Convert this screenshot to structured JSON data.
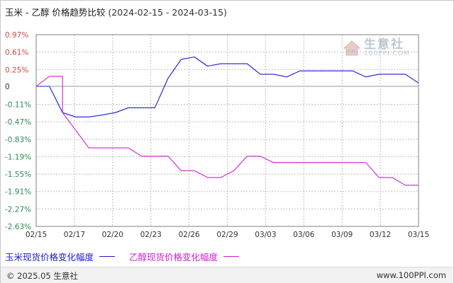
{
  "header": {
    "title": "玉米 - 乙醇 价格趋势比较",
    "date_range": "(2024-02-15 - 2024-03-15)"
  },
  "watermark": {
    "name": "生意社",
    "url": "100PPI.COM",
    "icon": "house-logo-icon"
  },
  "footer": {
    "copyright": "© 2025.05 生意社",
    "site": "www.100PPI.com"
  },
  "chart_data": {
    "type": "line",
    "title": "玉米 - 乙醇 价格趋势比较",
    "xlabel": "",
    "ylabel": "",
    "y_ticks": [
      "0.97%",
      "0.61%",
      "0.25%",
      "0",
      "-0.11%",
      "-0.47%",
      "-0.83%",
      "-1.19%",
      "-1.55%",
      "-1.91%",
      "-2.27%",
      "-2.63%"
    ],
    "y_tick_values": [
      0.97,
      0.61,
      0.25,
      0,
      -0.11,
      -0.47,
      -0.83,
      -1.19,
      -1.55,
      -1.91,
      -2.27,
      -2.63
    ],
    "ylim": [
      -2.63,
      0.97
    ],
    "x_ticks": [
      "02/15",
      "02/17",
      "02/20",
      "02/23",
      "02/26",
      "02/29",
      "03/03",
      "03/06",
      "03/09",
      "03/12",
      "03/15"
    ],
    "x_range": [
      "2024-02-15",
      "2024-03-15"
    ],
    "grid": true,
    "legend_position": "bottom-left",
    "series": [
      {
        "name": "玉米现货价格变化幅度",
        "color": "#1a1acd",
        "points": [
          [
            "2024-02-15",
            0
          ],
          [
            "2024-02-16",
            0
          ],
          [
            "2024-02-17",
            -0.28
          ],
          [
            "2024-02-18",
            -0.37
          ],
          [
            "2024-02-19",
            -0.37
          ],
          [
            "2024-02-20",
            -0.33
          ],
          [
            "2024-02-21",
            -0.28
          ],
          [
            "2024-02-22",
            -0.18
          ],
          [
            "2024-02-23",
            -0.18
          ],
          [
            "2024-02-24",
            -0.18
          ],
          [
            "2024-02-25",
            0.12
          ],
          [
            "2024-02-26",
            0.46
          ],
          [
            "2024-02-27",
            0.51
          ],
          [
            "2024-02-28",
            0.32
          ],
          [
            "2024-02-29",
            0.37
          ],
          [
            "2024-03-01",
            0.37
          ],
          [
            "2024-03-02",
            0.37
          ],
          [
            "2024-03-03",
            0.18
          ],
          [
            "2024-03-04",
            0.18
          ],
          [
            "2024-03-05",
            0.14
          ],
          [
            "2024-03-06",
            0.23
          ],
          [
            "2024-03-07",
            0.23
          ],
          [
            "2024-03-08",
            0.23
          ],
          [
            "2024-03-09",
            0.23
          ],
          [
            "2024-03-10",
            0.23
          ],
          [
            "2024-03-11",
            0.14
          ],
          [
            "2024-03-12",
            0.18
          ],
          [
            "2024-03-13",
            0.18
          ],
          [
            "2024-03-14",
            0.18
          ],
          [
            "2024-03-15",
            0.05
          ]
        ]
      },
      {
        "name": "乙醇现货价格变化幅度",
        "color": "#d020d0",
        "points": [
          [
            "2024-02-15",
            0
          ],
          [
            "2024-02-16",
            0.15
          ],
          [
            "2024-02-17",
            0.15
          ],
          [
            "2024-02-17",
            -0.28
          ],
          [
            "2024-02-19",
            -1.01
          ],
          [
            "2024-02-22",
            -1.01
          ],
          [
            "2024-02-23",
            -1.18
          ],
          [
            "2024-02-25",
            -1.18
          ],
          [
            "2024-02-26",
            -1.48
          ],
          [
            "2024-02-27",
            -1.48
          ],
          [
            "2024-02-28",
            -1.62
          ],
          [
            "2024-02-29",
            -1.62
          ],
          [
            "2024-03-01",
            -1.48
          ],
          [
            "2024-03-02",
            -1.18
          ],
          [
            "2024-03-03",
            -1.18
          ],
          [
            "2024-03-04",
            -1.31
          ],
          [
            "2024-03-11",
            -1.31
          ],
          [
            "2024-03-12",
            -1.62
          ],
          [
            "2024-03-13",
            -1.62
          ],
          [
            "2024-03-14",
            -1.78
          ],
          [
            "2024-03-15",
            -1.78
          ]
        ]
      }
    ]
  }
}
